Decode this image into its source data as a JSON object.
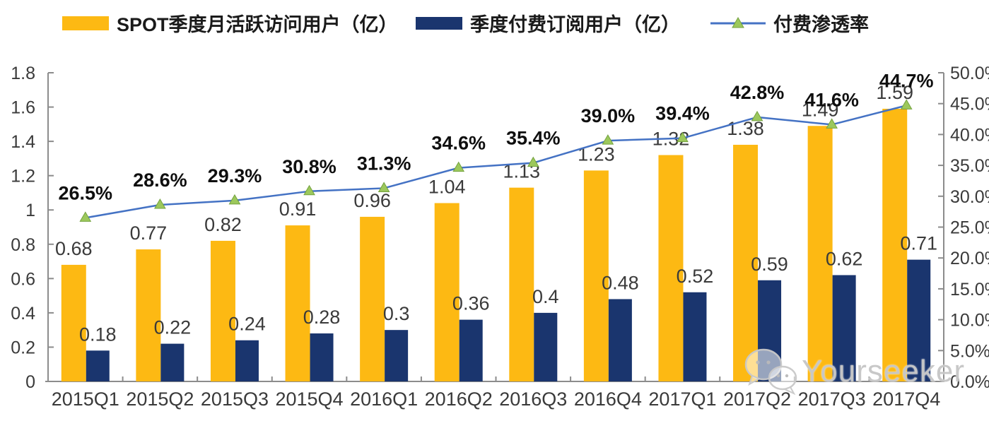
{
  "legend": {
    "mau_label": "SPOT季度月活跃访问用户（亿）",
    "subs_label": "季度付费订阅用户（亿）",
    "penetration_label": "付费渗透率"
  },
  "colors": {
    "mau_bar": "#FDB913",
    "subs_bar": "#1A356E",
    "penetration_line": "#4472C4",
    "penetration_marker_fill": "#9CC85C",
    "penetration_marker_stroke": "#74A23F",
    "axis": "#8C8C8C"
  },
  "watermark": {
    "text": "Yourseeker",
    "icon": "wechat-icon"
  },
  "chart_data": {
    "type": "bar",
    "subtype": "grouped bars + line (dual axis)",
    "categories": [
      "2015Q1",
      "2015Q2",
      "2015Q3",
      "2015Q4",
      "2016Q1",
      "2016Q2",
      "2016Q3",
      "2016Q4",
      "2017Q1",
      "2017Q2",
      "2017Q3",
      "2017Q4"
    ],
    "series": [
      {
        "name": "SPOT季度月活跃访问用户（亿）",
        "type": "bar",
        "axis": "left",
        "values": [
          0.68,
          0.77,
          0.82,
          0.91,
          0.96,
          1.04,
          1.13,
          1.23,
          1.32,
          1.38,
          1.49,
          1.59
        ],
        "labels": [
          "0.68",
          "0.77",
          "0.82",
          "0.91",
          "0.96",
          "1.04",
          "1.13",
          "1.23",
          "1.32",
          "1.38",
          "1.49",
          "1.59"
        ]
      },
      {
        "name": "季度付费订阅用户（亿）",
        "type": "bar",
        "axis": "left",
        "values": [
          0.18,
          0.22,
          0.24,
          0.28,
          0.3,
          0.36,
          0.4,
          0.48,
          0.52,
          0.59,
          0.62,
          0.71
        ],
        "labels": [
          "0.18",
          "0.22",
          "0.24",
          "0.28",
          "0.3",
          "0.36",
          "0.4",
          "0.48",
          "0.52",
          "0.59",
          "0.62",
          "0.71"
        ]
      },
      {
        "name": "付费渗透率",
        "type": "line",
        "axis": "right",
        "values": [
          26.5,
          28.6,
          29.3,
          30.8,
          31.3,
          34.6,
          35.4,
          39.0,
          39.4,
          42.8,
          41.6,
          44.7
        ],
        "labels": [
          "26.5%",
          "28.6%",
          "29.3%",
          "30.8%",
          "31.3%",
          "34.6%",
          "35.4%",
          "39.0%",
          "39.4%",
          "42.8%",
          "41.6%",
          "44.7%"
        ]
      }
    ],
    "left_axis": {
      "min": 0,
      "max": 1.8,
      "ticks": [
        "1.8",
        "1.6",
        "1.4",
        "1.2",
        "1",
        "0.8",
        "0.6",
        "0.4",
        "0.2",
        "0"
      ]
    },
    "right_axis": {
      "min": 0,
      "max": 50,
      "ticks": [
        "50.0%",
        "45.0%",
        "40.0%",
        "35.0%",
        "30.0%",
        "25.0%",
        "20.0%",
        "15.0%",
        "10.0%",
        "5.0%",
        "0.0%"
      ]
    },
    "grid": false,
    "legend_position": "top"
  }
}
